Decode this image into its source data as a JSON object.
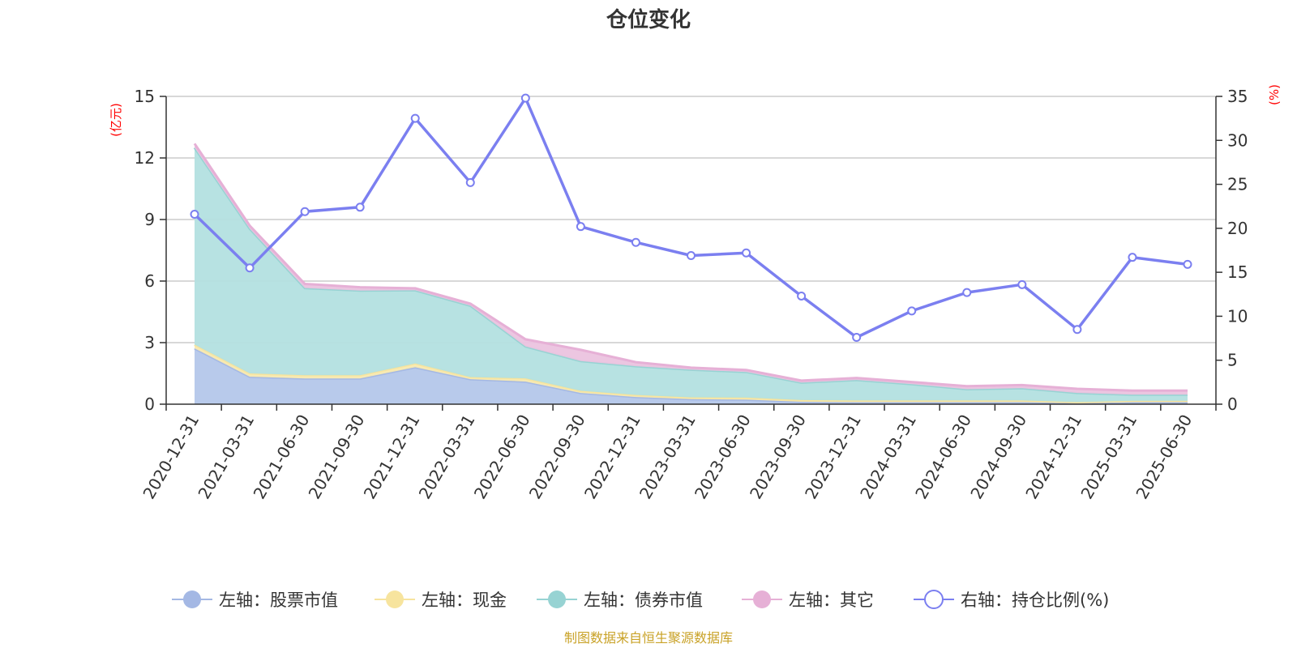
{
  "chart_data": {
    "type": "area",
    "title": "仓位变化",
    "left_axis_unit": "(亿元)",
    "right_axis_unit": "(%)",
    "categories": [
      "2020-12-31",
      "2021-03-31",
      "2021-06-30",
      "2021-09-30",
      "2021-12-31",
      "2022-03-31",
      "2022-06-30",
      "2022-09-30",
      "2022-12-31",
      "2023-03-31",
      "2023-06-30",
      "2023-09-30",
      "2023-12-31",
      "2024-03-31",
      "2024-06-30",
      "2024-09-30",
      "2024-12-31",
      "2025-03-31",
      "2025-06-30"
    ],
    "left_yticks": [
      "0",
      "3",
      "6",
      "9",
      "12",
      "15"
    ],
    "right_yticks": [
      "0",
      "5",
      "10",
      "15",
      "20",
      "25",
      "30",
      "35"
    ],
    "left_ylim": [
      0,
      15
    ],
    "right_ylim": [
      0,
      35
    ],
    "grid": true,
    "legend_position": "bottom",
    "stacked_series": [
      {
        "name": "左轴：股票市值",
        "color": "#a4b8e4",
        "fill": "#b4c7ea",
        "values": [
          2.72,
          1.34,
          1.25,
          1.25,
          1.8,
          1.22,
          1.1,
          0.55,
          0.35,
          0.25,
          0.22,
          0.12,
          0.1,
          0.1,
          0.1,
          0.1,
          0.05,
          0.1,
          0.1
        ]
      },
      {
        "name": "左轴：现金",
        "color": "#f7e49e",
        "fill": "#f9eab0",
        "values": [
          0.18,
          0.16,
          0.16,
          0.16,
          0.18,
          0.1,
          0.16,
          0.1,
          0.1,
          0.08,
          0.1,
          0.08,
          0.08,
          0.08,
          0.08,
          0.08,
          0.05,
          0.06,
          0.06
        ]
      },
      {
        "name": "左轴：债券市值",
        "color": "#97d3d3",
        "fill": "#b3e0e0",
        "values": [
          9.6,
          7.05,
          4.25,
          4.13,
          3.57,
          3.48,
          1.55,
          1.45,
          1.4,
          1.35,
          1.25,
          0.85,
          1.0,
          0.8,
          0.55,
          0.6,
          0.45,
          0.3,
          0.3
        ]
      },
      {
        "name": "左轴：其它",
        "color": "#e6b0d6",
        "fill": "#ebc3df",
        "values": [
          0.2,
          0.15,
          0.2,
          0.16,
          0.1,
          0.1,
          0.35,
          0.55,
          0.2,
          0.1,
          0.1,
          0.1,
          0.1,
          0.1,
          0.15,
          0.15,
          0.2,
          0.2,
          0.2
        ]
      }
    ],
    "line_series": {
      "name": "右轴：持仓比例(%)",
      "color": "#7b7ff0",
      "axis": "right",
      "values": [
        21.6,
        15.5,
        21.9,
        22.4,
        32.5,
        25.2,
        34.8,
        20.2,
        18.4,
        16.9,
        17.2,
        12.3,
        7.6,
        10.6,
        12.7,
        13.6,
        8.5,
        16.7,
        15.9
      ]
    },
    "source_note": "制图数据来自恒生聚源数据库"
  }
}
